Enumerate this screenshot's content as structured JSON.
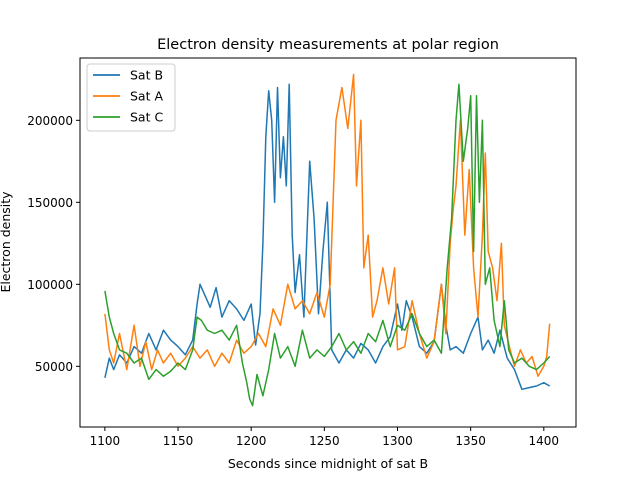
{
  "chart_data": {
    "type": "line",
    "title": "Electron density measurements at polar region",
    "xlabel": "Seconds since midnight of sat B",
    "ylabel": "Electron density",
    "xlim": [
      1083,
      1422
    ],
    "ylim": [
      13000,
      238000
    ],
    "xticks": [
      1100,
      1150,
      1200,
      1250,
      1300,
      1350,
      1400
    ],
    "xtick_labels": [
      "1100",
      "1150",
      "1200",
      "1250",
      "1300",
      "1350",
      "1400"
    ],
    "yticks": [
      50000,
      100000,
      150000,
      200000
    ],
    "ytick_labels": [
      "50000",
      "100000",
      "150000",
      "200000"
    ],
    "grid": false,
    "legend_position": "top-left",
    "series": [
      {
        "name": "Sat B",
        "color": "#1f77b4",
        "points": [
          [
            1100,
            43000
          ],
          [
            1103,
            55000
          ],
          [
            1106,
            48000
          ],
          [
            1110,
            57000
          ],
          [
            1115,
            52000
          ],
          [
            1120,
            62000
          ],
          [
            1125,
            58000
          ],
          [
            1130,
            70000
          ],
          [
            1135,
            60000
          ],
          [
            1140,
            72000
          ],
          [
            1145,
            66000
          ],
          [
            1150,
            62000
          ],
          [
            1155,
            57000
          ],
          [
            1160,
            66000
          ],
          [
            1163,
            88000
          ],
          [
            1165,
            100000
          ],
          [
            1168,
            94000
          ],
          [
            1172,
            86000
          ],
          [
            1176,
            98000
          ],
          [
            1180,
            80000
          ],
          [
            1185,
            90000
          ],
          [
            1190,
            85000
          ],
          [
            1195,
            78000
          ],
          [
            1200,
            88000
          ],
          [
            1203,
            63000
          ],
          [
            1206,
            82000
          ],
          [
            1208,
            125000
          ],
          [
            1210,
            190000
          ],
          [
            1212,
            218000
          ],
          [
            1214,
            200000
          ],
          [
            1216,
            150000
          ],
          [
            1218,
            220000
          ],
          [
            1220,
            165000
          ],
          [
            1222,
            190000
          ],
          [
            1224,
            160000
          ],
          [
            1226,
            222000
          ],
          [
            1228,
            130000
          ],
          [
            1230,
            95000
          ],
          [
            1233,
            118000
          ],
          [
            1236,
            80000
          ],
          [
            1240,
            175000
          ],
          [
            1243,
            140000
          ],
          [
            1246,
            82000
          ],
          [
            1249,
            120000
          ],
          [
            1252,
            150000
          ],
          [
            1255,
            60000
          ],
          [
            1260,
            52000
          ],
          [
            1265,
            60000
          ],
          [
            1270,
            55000
          ],
          [
            1275,
            64000
          ],
          [
            1280,
            60000
          ],
          [
            1285,
            52000
          ],
          [
            1290,
            62000
          ],
          [
            1295,
            68000
          ],
          [
            1300,
            88000
          ],
          [
            1303,
            72000
          ],
          [
            1306,
            90000
          ],
          [
            1310,
            80000
          ],
          [
            1315,
            62000
          ],
          [
            1320,
            58000
          ],
          [
            1325,
            65000
          ],
          [
            1330,
            100000
          ],
          [
            1333,
            75000
          ],
          [
            1336,
            60000
          ],
          [
            1340,
            62000
          ],
          [
            1345,
            58000
          ],
          [
            1350,
            70000
          ],
          [
            1355,
            80000
          ],
          [
            1358,
            60000
          ],
          [
            1362,
            66000
          ],
          [
            1366,
            58000
          ],
          [
            1370,
            72000
          ],
          [
            1375,
            55000
          ],
          [
            1380,
            48000
          ],
          [
            1385,
            36000
          ],
          [
            1390,
            37000
          ],
          [
            1395,
            38000
          ],
          [
            1400,
            40000
          ],
          [
            1404,
            38000
          ]
        ]
      },
      {
        "name": "Sat A",
        "color": "#ff7f0e",
        "points": [
          [
            1100,
            82000
          ],
          [
            1103,
            60000
          ],
          [
            1106,
            52000
          ],
          [
            1110,
            70000
          ],
          [
            1115,
            48000
          ],
          [
            1120,
            75000
          ],
          [
            1124,
            50000
          ],
          [
            1128,
            65000
          ],
          [
            1132,
            48000
          ],
          [
            1136,
            60000
          ],
          [
            1140,
            52000
          ],
          [
            1145,
            58000
          ],
          [
            1150,
            50000
          ],
          [
            1155,
            55000
          ],
          [
            1160,
            62000
          ],
          [
            1165,
            55000
          ],
          [
            1170,
            60000
          ],
          [
            1175,
            50000
          ],
          [
            1180,
            58000
          ],
          [
            1185,
            52000
          ],
          [
            1190,
            66000
          ],
          [
            1195,
            58000
          ],
          [
            1200,
            62000
          ],
          [
            1205,
            70000
          ],
          [
            1210,
            62000
          ],
          [
            1215,
            85000
          ],
          [
            1220,
            75000
          ],
          [
            1225,
            100000
          ],
          [
            1230,
            85000
          ],
          [
            1235,
            90000
          ],
          [
            1240,
            82000
          ],
          [
            1245,
            95000
          ],
          [
            1250,
            80000
          ],
          [
            1254,
            100000
          ],
          [
            1256,
            150000
          ],
          [
            1258,
            200000
          ],
          [
            1262,
            220000
          ],
          [
            1266,
            195000
          ],
          [
            1270,
            228000
          ],
          [
            1272,
            160000
          ],
          [
            1275,
            200000
          ],
          [
            1277,
            110000
          ],
          [
            1280,
            130000
          ],
          [
            1283,
            80000
          ],
          [
            1286,
            90000
          ],
          [
            1290,
            110000
          ],
          [
            1294,
            88000
          ],
          [
            1298,
            110000
          ],
          [
            1300,
            60000
          ],
          [
            1305,
            62000
          ],
          [
            1310,
            90000
          ],
          [
            1315,
            70000
          ],
          [
            1320,
            55000
          ],
          [
            1325,
            65000
          ],
          [
            1330,
            100000
          ],
          [
            1333,
            70000
          ],
          [
            1336,
            125000
          ],
          [
            1338,
            145000
          ],
          [
            1340,
            160000
          ],
          [
            1343,
            200000
          ],
          [
            1346,
            130000
          ],
          [
            1349,
            170000
          ],
          [
            1352,
            110000
          ],
          [
            1355,
            80000
          ],
          [
            1358,
            130000
          ],
          [
            1360,
            180000
          ],
          [
            1362,
            120000
          ],
          [
            1365,
            110000
          ],
          [
            1368,
            90000
          ],
          [
            1371,
            125000
          ],
          [
            1373,
            75000
          ],
          [
            1377,
            60000
          ],
          [
            1380,
            50000
          ],
          [
            1384,
            60000
          ],
          [
            1388,
            52000
          ],
          [
            1392,
            56000
          ],
          [
            1396,
            44000
          ],
          [
            1400,
            50000
          ],
          [
            1402,
            56000
          ],
          [
            1404,
            76000
          ]
        ]
      },
      {
        "name": "Sat C",
        "color": "#2ca02c",
        "points": [
          [
            1100,
            96000
          ],
          [
            1103,
            80000
          ],
          [
            1106,
            70000
          ],
          [
            1110,
            60000
          ],
          [
            1115,
            58000
          ],
          [
            1120,
            52000
          ],
          [
            1125,
            55000
          ],
          [
            1130,
            42000
          ],
          [
            1135,
            48000
          ],
          [
            1140,
            44000
          ],
          [
            1145,
            47000
          ],
          [
            1150,
            52000
          ],
          [
            1155,
            48000
          ],
          [
            1160,
            60000
          ],
          [
            1163,
            80000
          ],
          [
            1166,
            78000
          ],
          [
            1170,
            72000
          ],
          [
            1175,
            70000
          ],
          [
            1180,
            72000
          ],
          [
            1185,
            66000
          ],
          [
            1190,
            75000
          ],
          [
            1194,
            52000
          ],
          [
            1197,
            40000
          ],
          [
            1199,
            30000
          ],
          [
            1201,
            26000
          ],
          [
            1204,
            45000
          ],
          [
            1208,
            32000
          ],
          [
            1212,
            48000
          ],
          [
            1216,
            70000
          ],
          [
            1220,
            55000
          ],
          [
            1225,
            62000
          ],
          [
            1230,
            50000
          ],
          [
            1235,
            72000
          ],
          [
            1240,
            55000
          ],
          [
            1245,
            60000
          ],
          [
            1250,
            56000
          ],
          [
            1255,
            62000
          ],
          [
            1260,
            70000
          ],
          [
            1265,
            60000
          ],
          [
            1270,
            65000
          ],
          [
            1275,
            58000
          ],
          [
            1280,
            70000
          ],
          [
            1285,
            65000
          ],
          [
            1290,
            78000
          ],
          [
            1295,
            62000
          ],
          [
            1300,
            75000
          ],
          [
            1305,
            72000
          ],
          [
            1310,
            82000
          ],
          [
            1315,
            70000
          ],
          [
            1320,
            62000
          ],
          [
            1325,
            66000
          ],
          [
            1330,
            58000
          ],
          [
            1334,
            110000
          ],
          [
            1337,
            140000
          ],
          [
            1340,
            200000
          ],
          [
            1342,
            222000
          ],
          [
            1345,
            175000
          ],
          [
            1348,
            195000
          ],
          [
            1350,
            215000
          ],
          [
            1352,
            120000
          ],
          [
            1354,
            215000
          ],
          [
            1356,
            150000
          ],
          [
            1358,
            200000
          ],
          [
            1360,
            100000
          ],
          [
            1363,
            110000
          ],
          [
            1366,
            78000
          ],
          [
            1370,
            62000
          ],
          [
            1373,
            90000
          ],
          [
            1376,
            60000
          ],
          [
            1380,
            52000
          ],
          [
            1385,
            55000
          ],
          [
            1390,
            50000
          ],
          [
            1395,
            48000
          ],
          [
            1400,
            52000
          ],
          [
            1404,
            56000
          ]
        ]
      }
    ]
  }
}
